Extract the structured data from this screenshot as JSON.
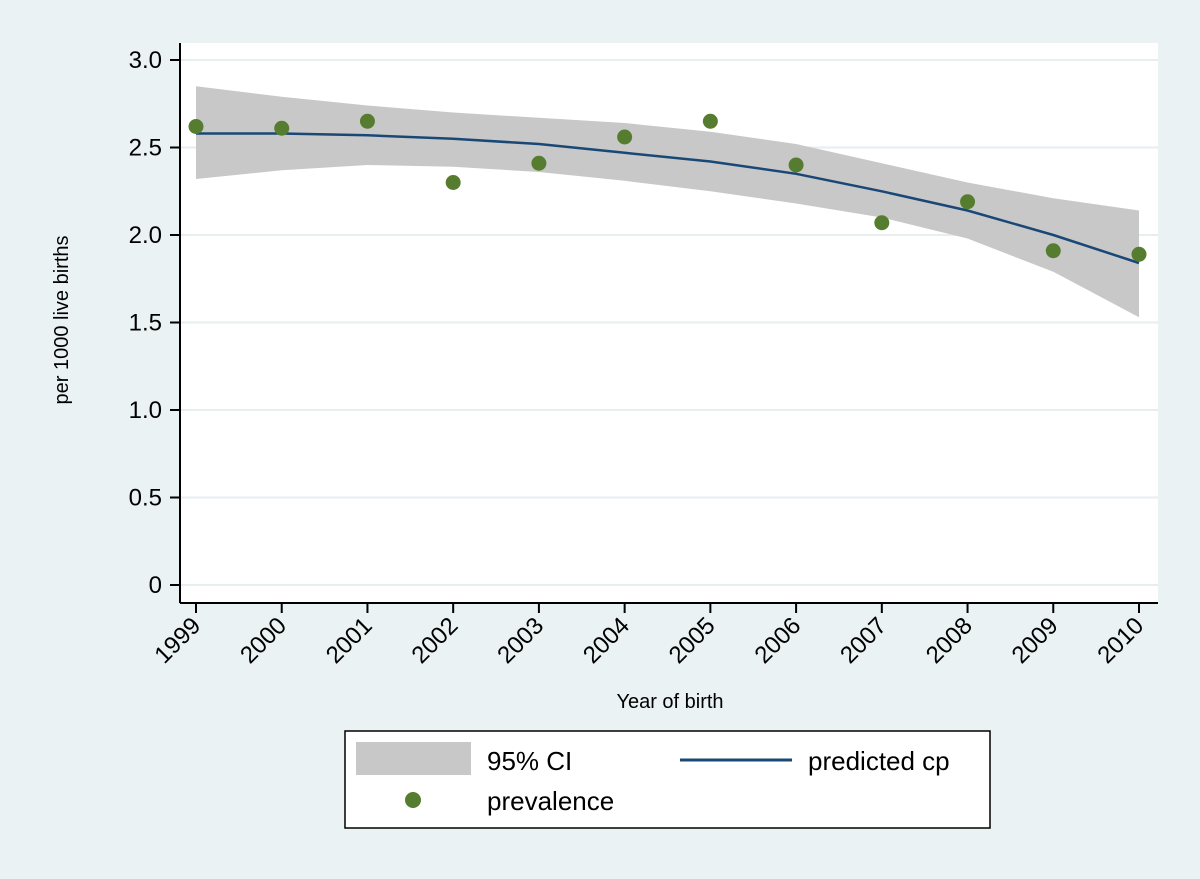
{
  "chart_data": {
    "type": "line",
    "title": "",
    "xlabel": "Year of birth",
    "ylabel": "per 1000 live births",
    "x": [
      1999,
      2000,
      2001,
      2002,
      2003,
      2004,
      2005,
      2006,
      2007,
      2008,
      2009,
      2010
    ],
    "xticks": [
      "1999",
      "2000",
      "2001",
      "2002",
      "2003",
      "2004",
      "2005",
      "2006",
      "2007",
      "2008",
      "2009",
      "2010"
    ],
    "yticks": [
      "0",
      "0.5",
      "1.0",
      "1.5",
      "2.0",
      "2.5",
      "3.0"
    ],
    "ylim": [
      0,
      3.0
    ],
    "grid": true,
    "legend_position": "bottom",
    "series": [
      {
        "name": "95% CI",
        "kind": "band",
        "color": "#c8c8c8",
        "upper": [
          2.85,
          2.79,
          2.74,
          2.7,
          2.67,
          2.64,
          2.59,
          2.52,
          2.41,
          2.3,
          2.21,
          2.14
        ],
        "lower": [
          2.32,
          2.37,
          2.4,
          2.39,
          2.36,
          2.31,
          2.25,
          2.18,
          2.1,
          1.98,
          1.79,
          1.53
        ]
      },
      {
        "name": "predicted cp",
        "kind": "line",
        "color": "#1a4876",
        "values": [
          2.58,
          2.58,
          2.57,
          2.55,
          2.52,
          2.47,
          2.42,
          2.35,
          2.25,
          2.14,
          2.0,
          1.84
        ]
      },
      {
        "name": "prevalence",
        "kind": "scatter",
        "color": "#567d2f",
        "values": [
          2.62,
          2.61,
          2.65,
          2.3,
          2.41,
          2.56,
          2.65,
          2.4,
          2.07,
          2.19,
          1.91,
          1.89
        ]
      }
    ]
  },
  "colors": {
    "outer_background": "#eaf2f3",
    "plot_background": "#ffffff",
    "grid": "#e6eef0"
  }
}
